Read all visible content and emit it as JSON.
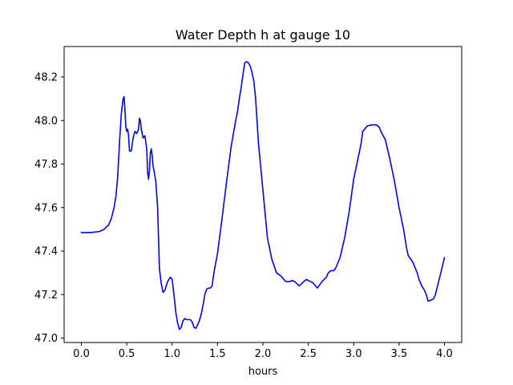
{
  "chart_data": {
    "type": "line",
    "title": "Water Depth h at gauge 10",
    "xlabel": "hours",
    "ylabel": "",
    "xlim": [
      -0.19,
      4.19
    ],
    "ylim": [
      46.98,
      48.34
    ],
    "xticks": [
      0.0,
      0.5,
      1.0,
      1.5,
      2.0,
      2.5,
      3.0,
      3.5,
      4.0
    ],
    "xtick_labels": [
      "0.0",
      "0.5",
      "1.0",
      "1.5",
      "2.0",
      "2.5",
      "3.0",
      "3.5",
      "4.0"
    ],
    "yticks": [
      47.0,
      47.2,
      47.4,
      47.6,
      47.8,
      48.0,
      48.2
    ],
    "ytick_labels": [
      "47.0",
      "47.2",
      "47.4",
      "47.6",
      "47.8",
      "48.0",
      "48.2"
    ],
    "grid": false,
    "colors": {
      "line": "#0000ff",
      "axes": "#000000",
      "background": "#ffffff"
    },
    "series": [
      {
        "name": "",
        "x": [
          0.0,
          0.1,
          0.2,
          0.25,
          0.3,
          0.33,
          0.36,
          0.38,
          0.4,
          0.42,
          0.44,
          0.46,
          0.47,
          0.48,
          0.49,
          0.5,
          0.51,
          0.52,
          0.53,
          0.55,
          0.57,
          0.59,
          0.61,
          0.63,
          0.64,
          0.65,
          0.66,
          0.68,
          0.7,
          0.72,
          0.73,
          0.74,
          0.75,
          0.76,
          0.77,
          0.78,
          0.79,
          0.8,
          0.82,
          0.84,
          0.86,
          0.88,
          0.9,
          0.92,
          0.95,
          0.98,
          1.0,
          1.02,
          1.04,
          1.06,
          1.08,
          1.1,
          1.12,
          1.14,
          1.16,
          1.18,
          1.2,
          1.22,
          1.24,
          1.26,
          1.28,
          1.3,
          1.32,
          1.34,
          1.36,
          1.38,
          1.4,
          1.42,
          1.44,
          1.46,
          1.5,
          1.55,
          1.6,
          1.65,
          1.7,
          1.72,
          1.74,
          1.76,
          1.78,
          1.8,
          1.82,
          1.84,
          1.86,
          1.88,
          1.9,
          1.92,
          1.95,
          2.0,
          2.05,
          2.1,
          2.15,
          2.2,
          2.25,
          2.3,
          2.32,
          2.35,
          2.4,
          2.45,
          2.48,
          2.5,
          2.55,
          2.6,
          2.65,
          2.7,
          2.72,
          2.75,
          2.78,
          2.8,
          2.85,
          2.9,
          2.95,
          3.0,
          3.05,
          3.08,
          3.1,
          3.15,
          3.2,
          3.22,
          3.25,
          3.28,
          3.3,
          3.35,
          3.4,
          3.45,
          3.5,
          3.55,
          3.58,
          3.6,
          3.65,
          3.7,
          3.72,
          3.75,
          3.78,
          3.8,
          3.82,
          3.85,
          3.88,
          3.9,
          3.93,
          3.96,
          4.0
        ],
        "y": [
          47.485,
          47.485,
          47.49,
          47.5,
          47.52,
          47.55,
          47.6,
          47.65,
          47.74,
          47.9,
          48.03,
          48.1,
          48.11,
          48.05,
          47.97,
          47.95,
          47.96,
          47.93,
          47.86,
          47.86,
          47.92,
          47.95,
          47.94,
          47.96,
          48.01,
          48.0,
          47.96,
          47.92,
          47.93,
          47.87,
          47.76,
          47.73,
          47.77,
          47.85,
          47.87,
          47.84,
          47.79,
          47.77,
          47.72,
          47.6,
          47.32,
          47.25,
          47.21,
          47.22,
          47.26,
          47.28,
          47.27,
          47.2,
          47.12,
          47.07,
          47.04,
          47.05,
          47.08,
          47.09,
          47.085,
          47.085,
          47.085,
          47.075,
          47.05,
          47.045,
          47.06,
          47.08,
          47.11,
          47.15,
          47.2,
          47.225,
          47.23,
          47.23,
          47.24,
          47.3,
          47.39,
          47.55,
          47.72,
          47.88,
          48.0,
          48.04,
          48.1,
          48.15,
          48.21,
          48.265,
          48.27,
          48.265,
          48.25,
          48.22,
          48.18,
          48.1,
          47.9,
          47.68,
          47.46,
          47.36,
          47.3,
          47.285,
          47.26,
          47.26,
          47.265,
          47.26,
          47.24,
          47.26,
          47.27,
          47.265,
          47.255,
          47.23,
          47.26,
          47.28,
          47.3,
          47.31,
          47.31,
          47.32,
          47.37,
          47.46,
          47.58,
          47.73,
          47.83,
          47.89,
          47.95,
          47.975,
          47.98,
          47.98,
          47.98,
          47.97,
          47.95,
          47.91,
          47.82,
          47.72,
          47.6,
          47.5,
          47.42,
          47.38,
          47.35,
          47.3,
          47.27,
          47.24,
          47.22,
          47.2,
          47.17,
          47.175,
          47.18,
          47.2,
          47.25,
          47.3,
          47.37
        ]
      }
    ]
  }
}
